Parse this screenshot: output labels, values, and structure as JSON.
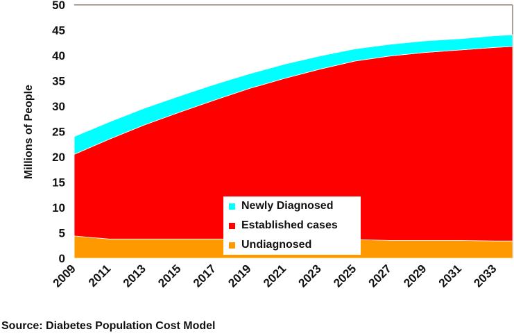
{
  "chart_data": {
    "type": "area",
    "stacked": true,
    "title": "",
    "xlabel": "",
    "ylabel": "Millions of People",
    "ylim": [
      0,
      50
    ],
    "yticks": [
      0,
      5,
      10,
      15,
      20,
      25,
      30,
      35,
      40,
      45,
      50
    ],
    "x": [
      2009,
      2011,
      2013,
      2015,
      2017,
      2019,
      2021,
      2023,
      2025,
      2027,
      2029,
      2031,
      2033,
      2034
    ],
    "xtick_labels": [
      "2009",
      "2011",
      "2013",
      "2015",
      "2017",
      "2019",
      "2021",
      "2023",
      "2025",
      "2027",
      "2029",
      "2031",
      "2033"
    ],
    "series": [
      {
        "name": "Undiagnosed",
        "color": "#FF9900",
        "values": [
          4.4,
          3.8,
          3.8,
          3.8,
          3.8,
          3.8,
          3.7,
          3.7,
          3.7,
          3.5,
          3.5,
          3.5,
          3.4,
          3.4
        ]
      },
      {
        "name": "Established cases",
        "color": "#FF0000",
        "values": [
          16.1,
          19.7,
          22.5,
          25.0,
          27.4,
          29.7,
          31.8,
          33.6,
          35.2,
          36.4,
          37.1,
          37.6,
          38.2,
          38.4
        ]
      },
      {
        "name": "Newly Diagnosed",
        "color": "#00FFFF",
        "values": [
          3.5,
          3.4,
          3.3,
          3.2,
          3.1,
          2.9,
          2.8,
          2.6,
          2.4,
          2.3,
          2.3,
          2.2,
          2.3,
          2.3
        ]
      }
    ],
    "legend": {
      "position": "bottom-center",
      "entries": [
        "Newly Diagnosed",
        "Established cases",
        "Undiagnosed"
      ]
    },
    "grid": false
  },
  "source": "Source: Diabetes Population Cost Model"
}
